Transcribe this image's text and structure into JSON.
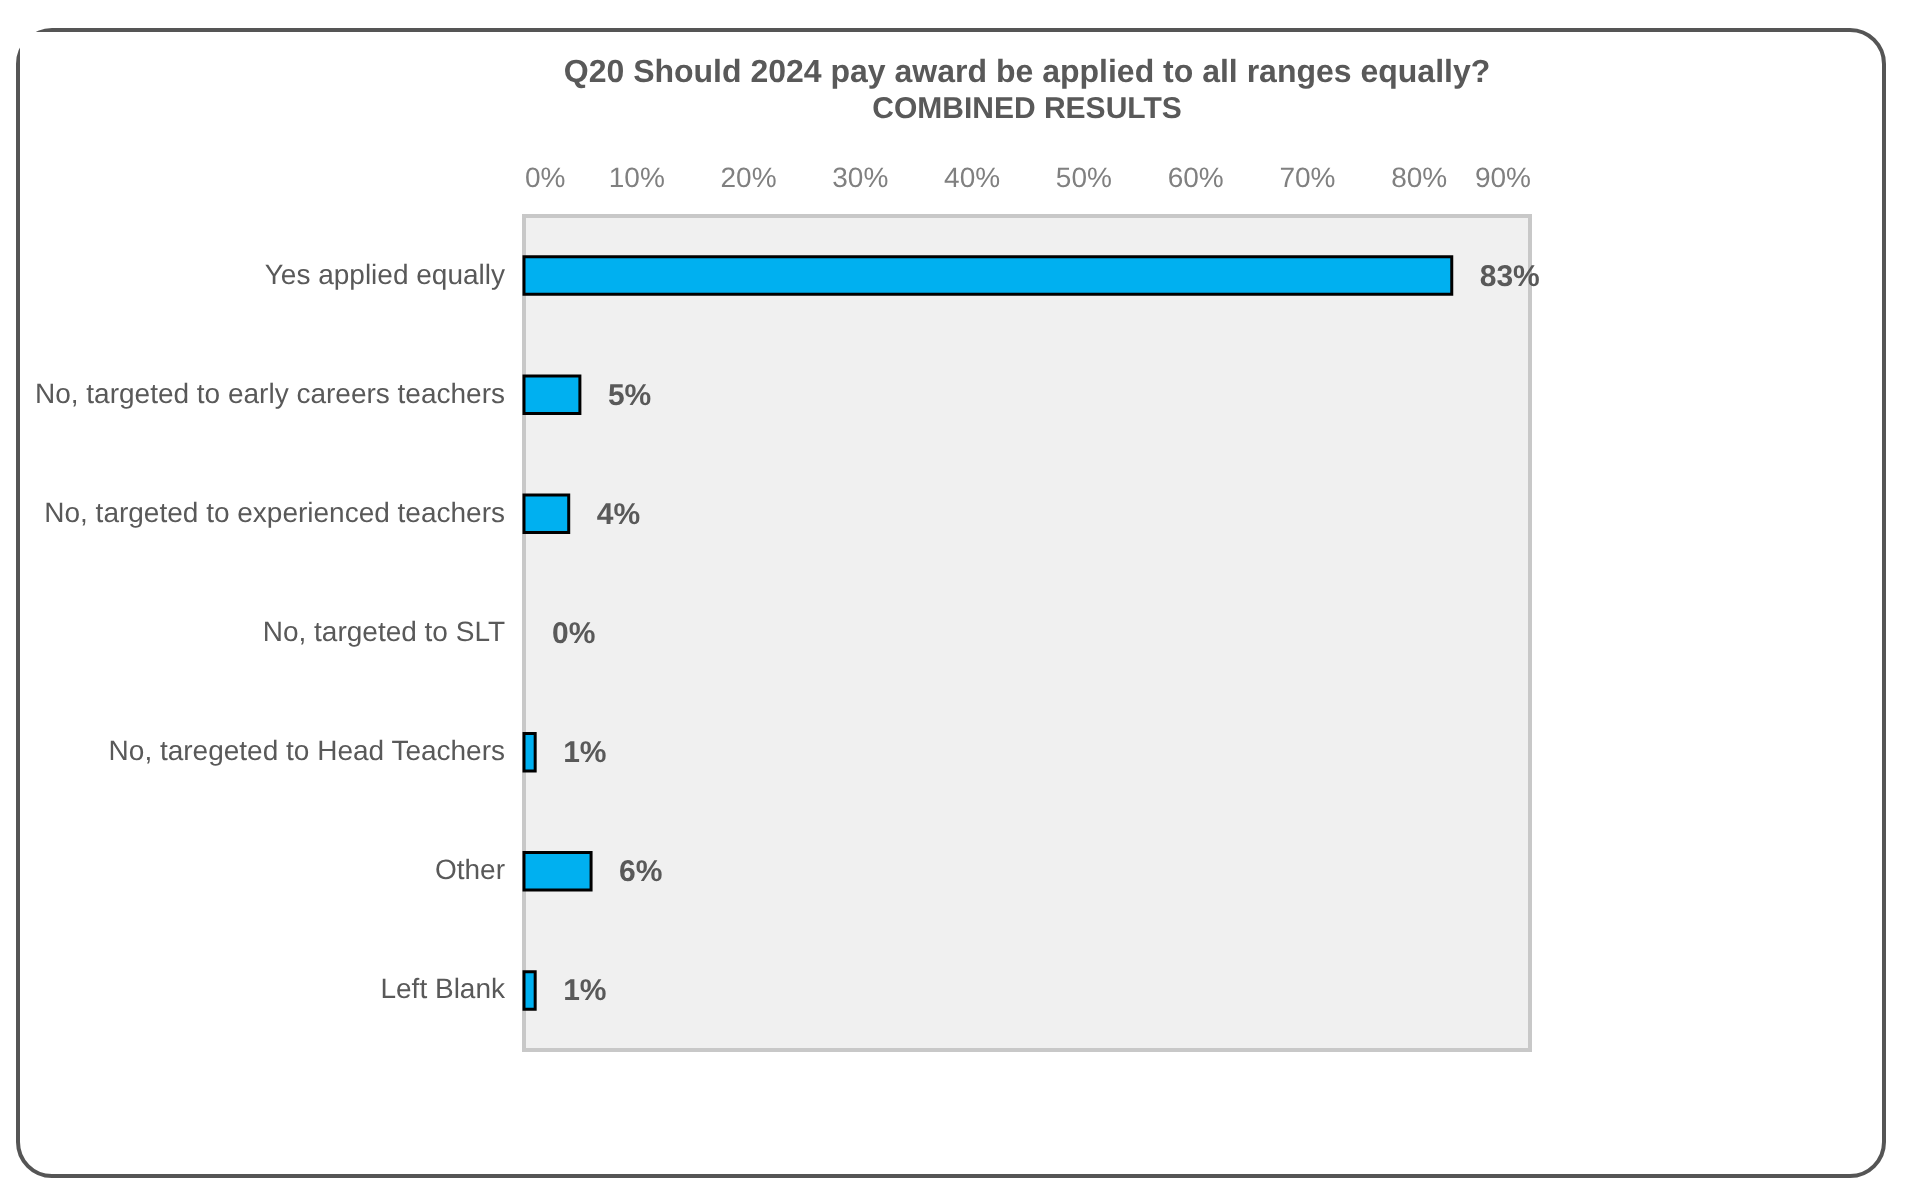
{
  "chart_data": {
    "type": "bar",
    "orientation": "horizontal",
    "title": "Q20 Should 2024 pay award be applied to all ranges equally?",
    "subtitle": "COMBINED RESULTS",
    "categories": [
      "Yes applied equally",
      "No, targeted to early careers teachers",
      "No, targeted to experienced teachers",
      "No, targeted to SLT",
      "No, taregeted to Head Teachers",
      "Other",
      "Left Blank"
    ],
    "values": [
      83,
      5,
      4,
      0,
      1,
      6,
      1
    ],
    "value_labels": [
      "83%",
      "5%",
      "4%",
      "0%",
      "1%",
      "6%",
      "1%"
    ],
    "color": "#00b0f0",
    "xlim": [
      0,
      90
    ],
    "xticks": [
      {
        "value": 0,
        "label": "0%"
      },
      {
        "value": 10,
        "label": "10%"
      },
      {
        "value": 20,
        "label": "20%"
      },
      {
        "value": 30,
        "label": "30%"
      },
      {
        "value": 40,
        "label": "40%"
      },
      {
        "value": 50,
        "label": "50%"
      },
      {
        "value": 60,
        "label": "60%"
      },
      {
        "value": 70,
        "label": "70%"
      },
      {
        "value": 80,
        "label": "80%"
      },
      {
        "value": 90,
        "label": "90%"
      }
    ],
    "grid": false
  }
}
